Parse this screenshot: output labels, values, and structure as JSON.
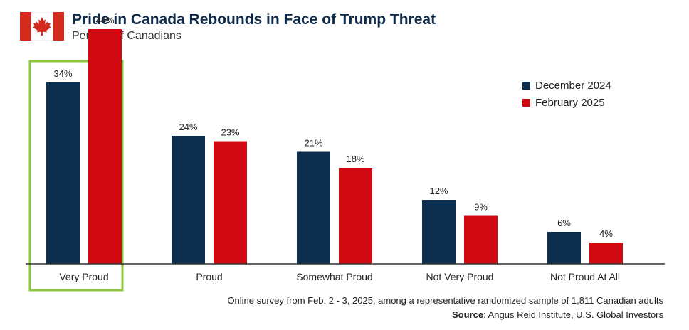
{
  "title": "Pride in Canada Rebounds in Face of Trump Threat",
  "subtitle": "Percent of Canadians",
  "colors": {
    "dec2024": "#0b2d4e",
    "feb2025": "#d10a11",
    "highlight": "#8cc63f",
    "flag_red": "#d52b1e"
  },
  "icons": {
    "flag": "canada-flag-icon"
  },
  "chart_data": {
    "type": "bar",
    "categories": [
      "Very Proud",
      "Proud",
      "Somewhat Proud",
      "Not Very Proud",
      "Not Proud At All"
    ],
    "series": [
      {
        "name": "December 2024",
        "values": [
          34,
          24,
          21,
          12,
          6
        ],
        "labels": [
          "34%",
          "24%",
          "21%",
          "12%",
          "6%"
        ]
      },
      {
        "name": "February 2025",
        "values": [
          44,
          23,
          18,
          9,
          4
        ],
        "labels": [
          "44%",
          "23%",
          "18%",
          "9%",
          "4%"
        ]
      }
    ],
    "ylim": [
      0,
      50
    ],
    "grid": false,
    "legend_position": "top-right",
    "highlighted_category": "Very Proud"
  },
  "legend": {
    "dec": "December 2024",
    "feb": "February 2025"
  },
  "footnote": {
    "survey": "Online survey from Feb. 2 - 3, 2025, among a representative randomized sample of 1,811 Canadian adults",
    "source_label": "Source",
    "source_text": ": Angus Reid Institute, U.S. Global Investors"
  }
}
